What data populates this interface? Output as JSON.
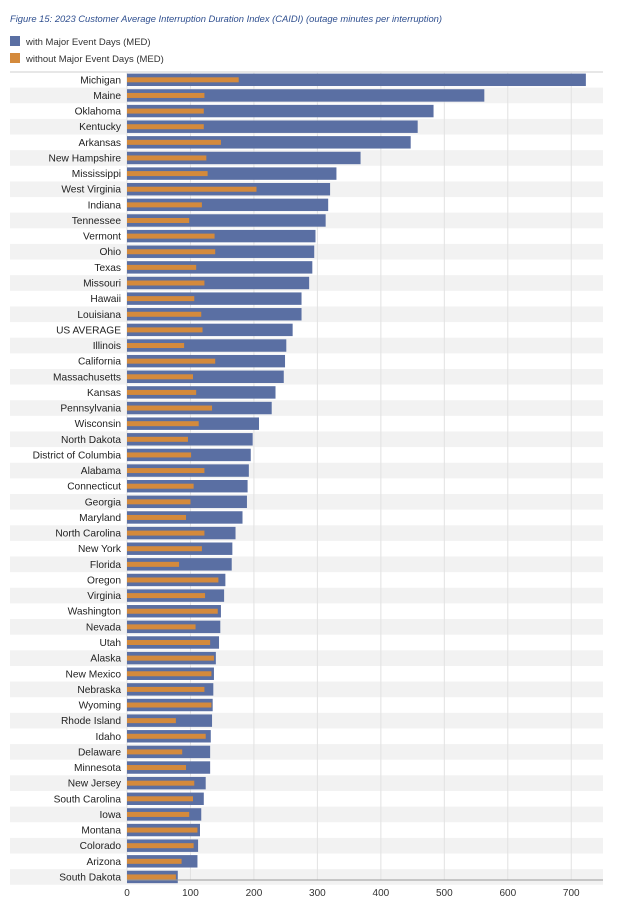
{
  "chart_data": {
    "type": "bar",
    "orientation": "horizontal",
    "title": "Figure 15: 2023 Customer Average Interruption Duration Index (CAIDI) (outage minutes per interruption)",
    "xlabel": "",
    "ylabel": "",
    "xlim": [
      0,
      750
    ],
    "xticks": [
      0,
      100,
      200,
      300,
      400,
      500,
      600,
      700
    ],
    "legend_position": "top-left",
    "categories": [
      "Michigan",
      "Maine",
      "Oklahoma",
      "Kentucky",
      "Arkansas",
      "New Hampshire",
      "Mississippi",
      "West Virginia",
      "Indiana",
      "Tennessee",
      "Vermont",
      "Ohio",
      "Texas",
      "Missouri",
      "Hawaii",
      "Louisiana",
      "US AVERAGE",
      "Illinois",
      "California",
      "Massachusetts",
      "Kansas",
      "Pennsylvania",
      "Wisconsin",
      "North Dakota",
      "District of Columbia",
      "Alabama",
      "Connecticut",
      "Georgia",
      "Maryland",
      "North Carolina",
      "New York",
      "Florida",
      "Oregon",
      "Virginia",
      "Washington",
      "Nevada",
      "Utah",
      "Alaska",
      "New Mexico",
      "Nebraska",
      "Wyoming",
      "Rhode Island",
      "Idaho",
      "Delaware",
      "Minnesota",
      "New Jersey",
      "South Carolina",
      "Iowa",
      "Montana",
      "Colorado",
      "Arizona",
      "South Dakota"
    ],
    "series": [
      {
        "name": "with Major Event Days (MED)",
        "color": "#5a6fa3",
        "values": [
          723,
          563,
          483,
          458,
          447,
          368,
          330,
          320,
          317,
          313,
          297,
          295,
          292,
          287,
          275,
          275,
          261,
          251,
          249,
          247,
          234,
          228,
          208,
          198,
          195,
          192,
          190,
          189,
          182,
          171,
          166,
          165,
          155,
          153,
          148,
          147,
          145,
          140,
          137,
          136,
          135,
          134,
          132,
          131,
          131,
          124,
          121,
          117,
          115,
          112,
          111,
          80
        ]
      },
      {
        "name": "without Major Event Days (MED)",
        "color": "#d48a3c",
        "values": [
          176,
          122,
          121,
          121,
          148,
          125,
          127,
          204,
          118,
          98,
          138,
          139,
          109,
          122,
          106,
          117,
          119,
          90,
          139,
          104,
          109,
          134,
          113,
          96,
          101,
          122,
          105,
          100,
          93,
          122,
          118,
          82,
          144,
          123,
          143,
          108,
          131,
          137,
          133,
          122,
          133,
          77,
          124,
          87,
          93,
          106,
          104,
          98,
          111,
          105,
          86,
          77
        ]
      }
    ]
  }
}
